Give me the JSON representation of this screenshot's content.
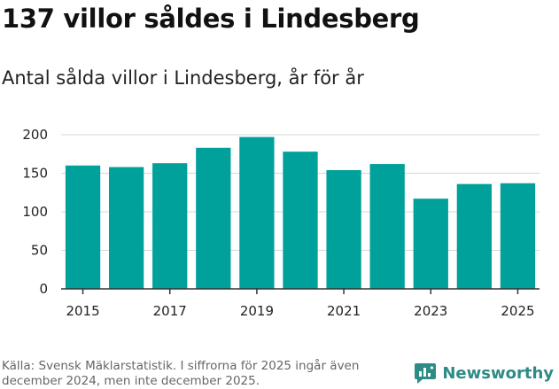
{
  "title": "137 villor såldes i Lindesberg",
  "subtitle": "Antal sålda villor i Lindesberg, år för år",
  "source": "Källa: Svensk Mäklarstatistik. I siffrorna för 2025 ingår även december 2024, men inte december 2025.",
  "brand": {
    "name": "Newsworthy",
    "icon": "newsworthy-logo-icon",
    "color": "#2e8b86"
  },
  "colors": {
    "bar": "#00a19a",
    "grid": "#d6d6d6",
    "axis": "#333333"
  },
  "chart_data": {
    "type": "bar",
    "title": "Antal sålda villor i Lindesberg, år för år",
    "xlabel": "",
    "ylabel": "",
    "categories": [
      "2015",
      "2016",
      "2017",
      "2018",
      "2019",
      "2020",
      "2021",
      "2022",
      "2023",
      "2024",
      "2025"
    ],
    "values": [
      160,
      158,
      163,
      183,
      197,
      178,
      154,
      162,
      117,
      136,
      137
    ],
    "ylim": [
      0,
      200
    ],
    "yticks": [
      0,
      50,
      100,
      150,
      200
    ],
    "xticks": [
      "2015",
      "2017",
      "2019",
      "2021",
      "2023",
      "2025"
    ],
    "grid": true,
    "legend": "none"
  }
}
